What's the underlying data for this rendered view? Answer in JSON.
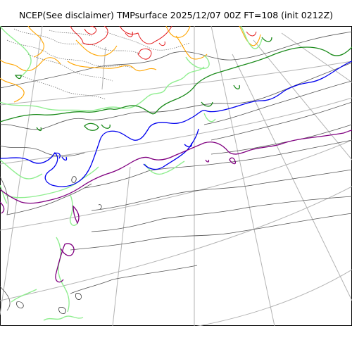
{
  "title": "NCEP(See disclaimer) TMPsurface 2025/12/07 00Z FT=108 (init 0212Z)",
  "contour_colors": {
    "gray": "#555555",
    "dotted": "#666666",
    "red": "#e31a1c",
    "orange": "#ffa500",
    "lightgreen": "#90ee90",
    "green": "#1a8a1a",
    "blue": "#0000ee",
    "purple": "#800080",
    "gridline": "#b0b0b0"
  }
}
